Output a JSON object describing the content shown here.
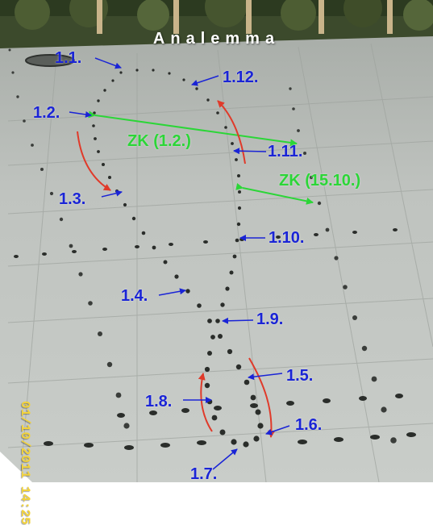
{
  "title": "Analemma",
  "timestamp": "01/10/2011 14:25",
  "date_labels": [
    "1.1.",
    "1.2.",
    "1.3.",
    "1.4.",
    "1.5.",
    "1.6.",
    "1.7.",
    "1.8.",
    "1.9.",
    "1.10.",
    "1.11.",
    "1.12."
  ],
  "equation_of_time_labels": [
    "ZK (1.2.)",
    "ZK (15.10.)"
  ],
  "colors": {
    "date_label": "#1a24d6",
    "equation_of_time": "#2bd637",
    "direction_arrow": "#e03a2a",
    "title": "#ffffff",
    "timestamp": "#f2d23a",
    "pavement": "#b7bbb8",
    "hedge": "#3c4a2c"
  }
}
